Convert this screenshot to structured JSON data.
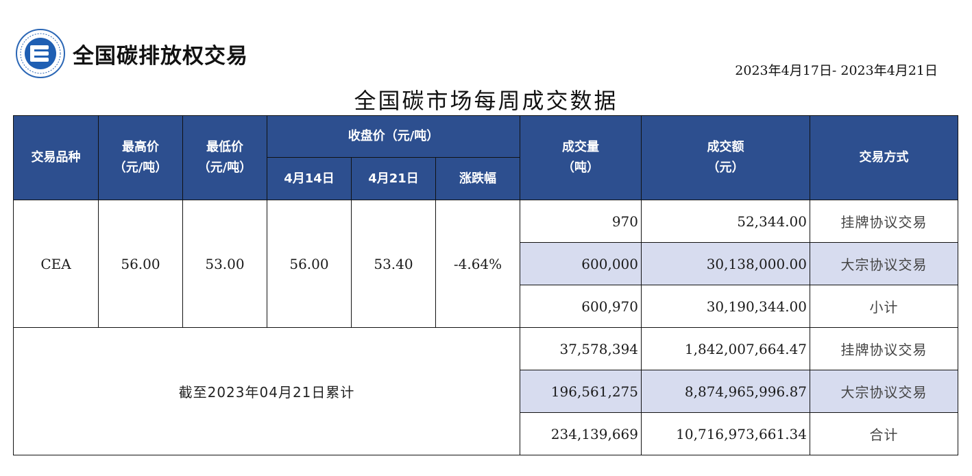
{
  "header": {
    "logo_text": "全国碳排放权交易",
    "date_range": "2023年4月17日- 2023年4月21日",
    "title": "全国碳市场每周成交数据"
  },
  "colors": {
    "header_bg": "#2d4f8f",
    "row_shade": "#d7dcef"
  },
  "columns": {
    "product": "交易品种",
    "high_line1": "最高价",
    "high_line2": "（元/吨）",
    "low_line1": "最低价",
    "low_line2": "（元/吨）",
    "close": "收盘价（元/吨）",
    "close_prev": "4月14日",
    "close_curr": "4月21日",
    "change": "涨跌幅",
    "volume_line1": "成交量",
    "volume_line2": "（吨）",
    "amount_line1": "成交额",
    "amount_line2": "（元）",
    "mode": "交易方式"
  },
  "weekly": {
    "product": "CEA",
    "high": "56.00",
    "low": "53.00",
    "close_prev": "56.00",
    "close_curr": "53.40",
    "change": "-4.64%",
    "rows": [
      {
        "volume": "970",
        "amount": "52,344.00",
        "mode": "挂牌协议交易"
      },
      {
        "volume": "600,000",
        "amount": "30,138,000.00",
        "mode": "大宗协议交易"
      },
      {
        "volume": "600,970",
        "amount": "30,190,344.00",
        "mode": "小计"
      }
    ]
  },
  "cumulative": {
    "label": "截至2023年04月21日累计",
    "rows": [
      {
        "volume": "37,578,394",
        "amount": "1,842,007,664.47",
        "mode": "挂牌协议交易"
      },
      {
        "volume": "196,561,275",
        "amount": "8,874,965,996.87",
        "mode": "大宗协议交易"
      },
      {
        "volume": "234,139,669",
        "amount": "10,716,973,661.34",
        "mode": "合计"
      }
    ]
  }
}
